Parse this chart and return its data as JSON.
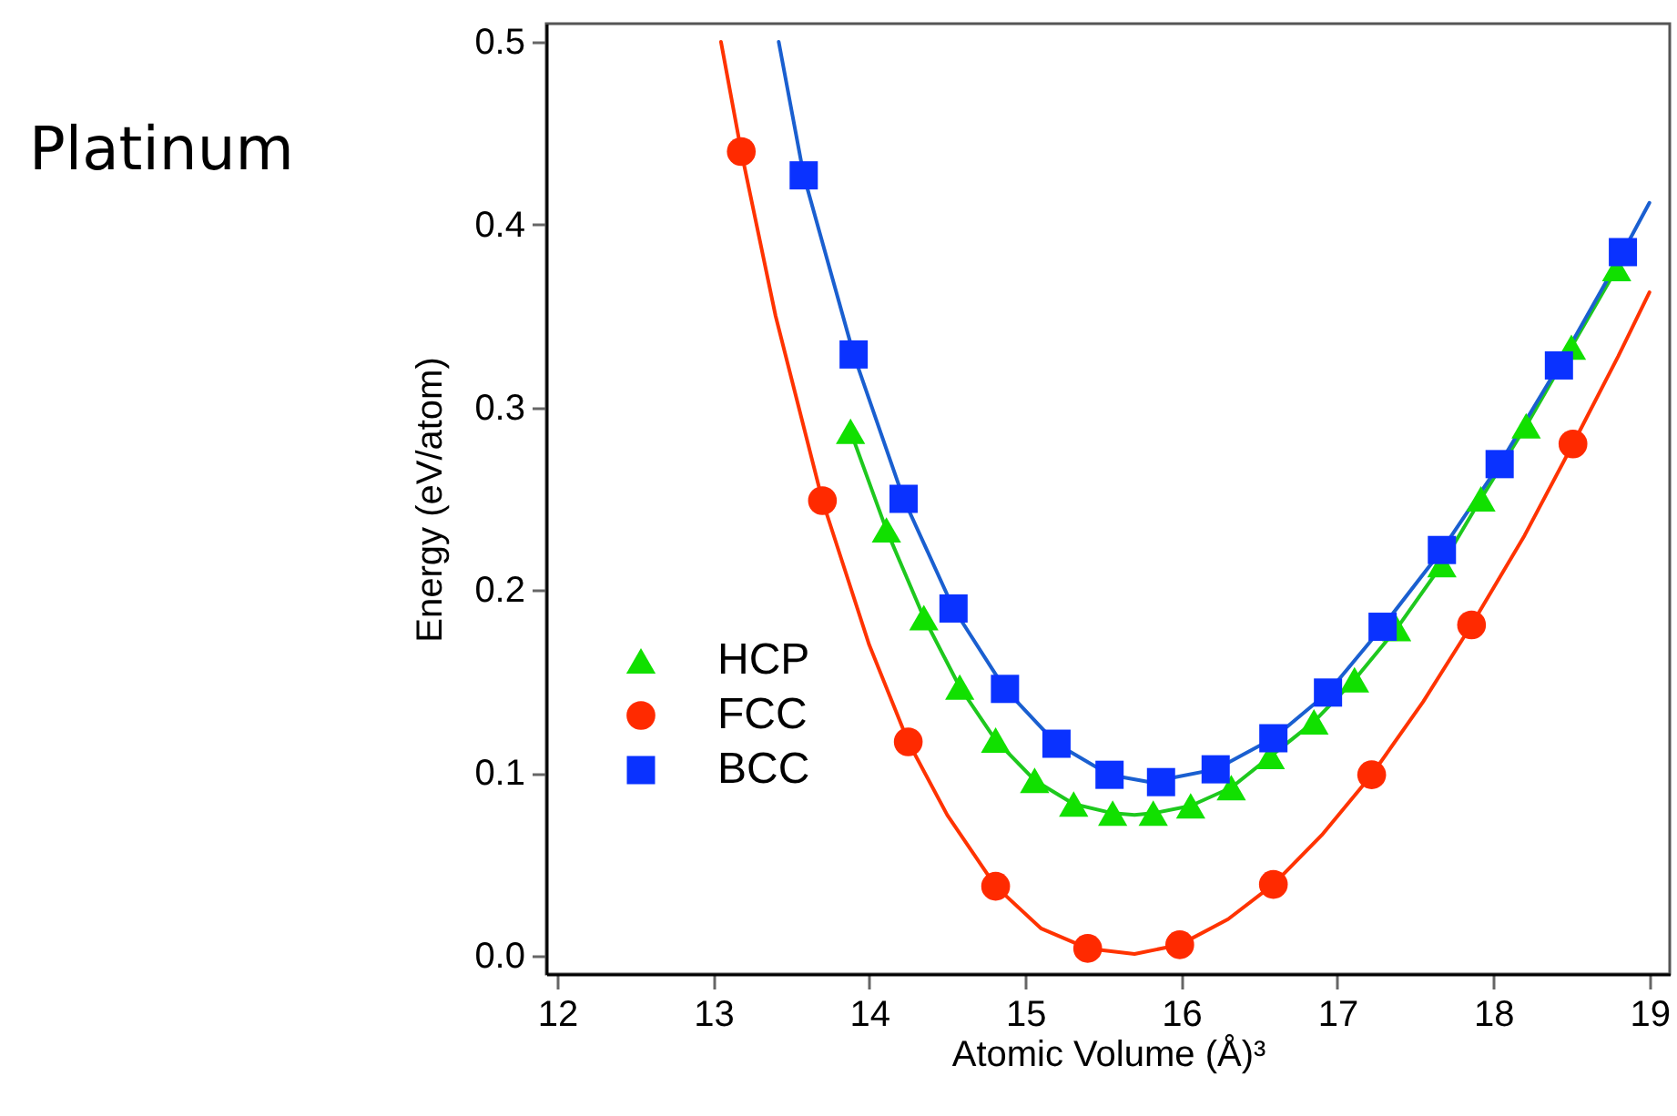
{
  "chart_data": {
    "type": "scatter",
    "title": "Platinum",
    "xlabel": "Atomic Volume (Å)³",
    "ylabel": "Energy (eV/atom)",
    "xlim": [
      11.93,
      19.13
    ],
    "ylim": [
      -0.01,
      0.51
    ],
    "xticks": [
      12,
      13,
      14,
      15,
      16,
      17,
      18,
      19
    ],
    "yticks": [
      {
        "value": 0,
        "label": "0.0"
      },
      0.1,
      0.2,
      0.3,
      0.4,
      0.5
    ],
    "grid": false,
    "legend": "left",
    "series": [
      {
        "type": "line",
        "color": "#1ec81e",
        "line_style": "solid",
        "x": [
          13.88,
          14.11,
          14.35,
          14.58,
          14.81,
          15.06,
          15.31,
          15.56,
          15.7,
          15.82,
          16.06,
          16.32,
          16.57,
          16.85,
          17.11,
          17.38,
          17.67,
          17.92,
          18.21,
          18.5,
          18.79
        ],
        "values": [
          0.287,
          0.233,
          0.185,
          0.147,
          0.118,
          0.096,
          0.083,
          0.078,
          0.077,
          0.078,
          0.082,
          0.092,
          0.109,
          0.128,
          0.151,
          0.179,
          0.214,
          0.25,
          0.29,
          0.333,
          0.376
        ]
      },
      {
        "type": "line",
        "color": "#ff3300",
        "line_style": "solid",
        "x": [
          13.05,
          13.18,
          13.4,
          13.7,
          14.0,
          14.25,
          14.5,
          14.81,
          15.1,
          15.4,
          15.7,
          15.99,
          16.3,
          16.59,
          16.9,
          17.22,
          17.55,
          17.86,
          18.2,
          18.51,
          18.8,
          19.0
        ],
        "values": [
          0.5,
          0.44,
          0.35,
          0.249,
          0.17,
          0.117,
          0.077,
          0.038,
          0.015,
          0.004,
          0.001,
          0.006,
          0.02,
          0.039,
          0.066,
          0.099,
          0.139,
          0.181,
          0.23,
          0.28,
          0.328,
          0.363
        ]
      },
      {
        "type": "line",
        "color": "#1a5fd0",
        "line_style": "solid",
        "x": [
          13.42,
          13.58,
          13.9,
          14.22,
          14.54,
          14.87,
          15.2,
          15.54,
          15.8,
          16.22,
          16.59,
          16.94,
          17.29,
          17.67,
          18.04,
          18.42,
          18.83,
          19.0
        ],
        "values": [
          0.5,
          0.427,
          0.329,
          0.25,
          0.19,
          0.146,
          0.116,
          0.099,
          0.095,
          0.102,
          0.119,
          0.144,
          0.18,
          0.222,
          0.269,
          0.323,
          0.385,
          0.412
        ]
      },
      {
        "name": "HCP",
        "marker": "triangle",
        "color": "#11e000",
        "x": [
          13.88,
          14.11,
          14.35,
          14.58,
          14.81,
          15.06,
          15.31,
          15.56,
          15.82,
          16.06,
          16.32,
          16.57,
          16.85,
          17.11,
          17.38,
          17.67,
          17.92,
          18.21,
          18.5,
          18.79
        ],
        "values": [
          0.287,
          0.233,
          0.185,
          0.147,
          0.118,
          0.096,
          0.083,
          0.078,
          0.078,
          0.082,
          0.092,
          0.109,
          0.128,
          0.151,
          0.179,
          0.214,
          0.25,
          0.29,
          0.333,
          0.376
        ]
      },
      {
        "name": "FCC",
        "marker": "circle",
        "color": "#ff2a00",
        "x": [
          13.18,
          13.7,
          14.25,
          14.81,
          15.4,
          15.99,
          16.59,
          17.22,
          17.86,
          18.51
        ],
        "values": [
          0.44,
          0.249,
          0.117,
          0.038,
          0.004,
          0.006,
          0.039,
          0.099,
          0.181,
          0.28
        ]
      },
      {
        "name": "BCC",
        "marker": "square",
        "color": "#0a32ff",
        "x": [
          13.58,
          13.9,
          14.22,
          14.54,
          14.87,
          15.2,
          15.54,
          15.87,
          16.22,
          16.59,
          16.94,
          17.29,
          17.67,
          18.04,
          18.42,
          18.83
        ],
        "values": [
          0.427,
          0.329,
          0.25,
          0.19,
          0.146,
          0.116,
          0.099,
          0.095,
          0.102,
          0.119,
          0.144,
          0.18,
          0.222,
          0.269,
          0.323,
          0.385
        ]
      }
    ]
  }
}
